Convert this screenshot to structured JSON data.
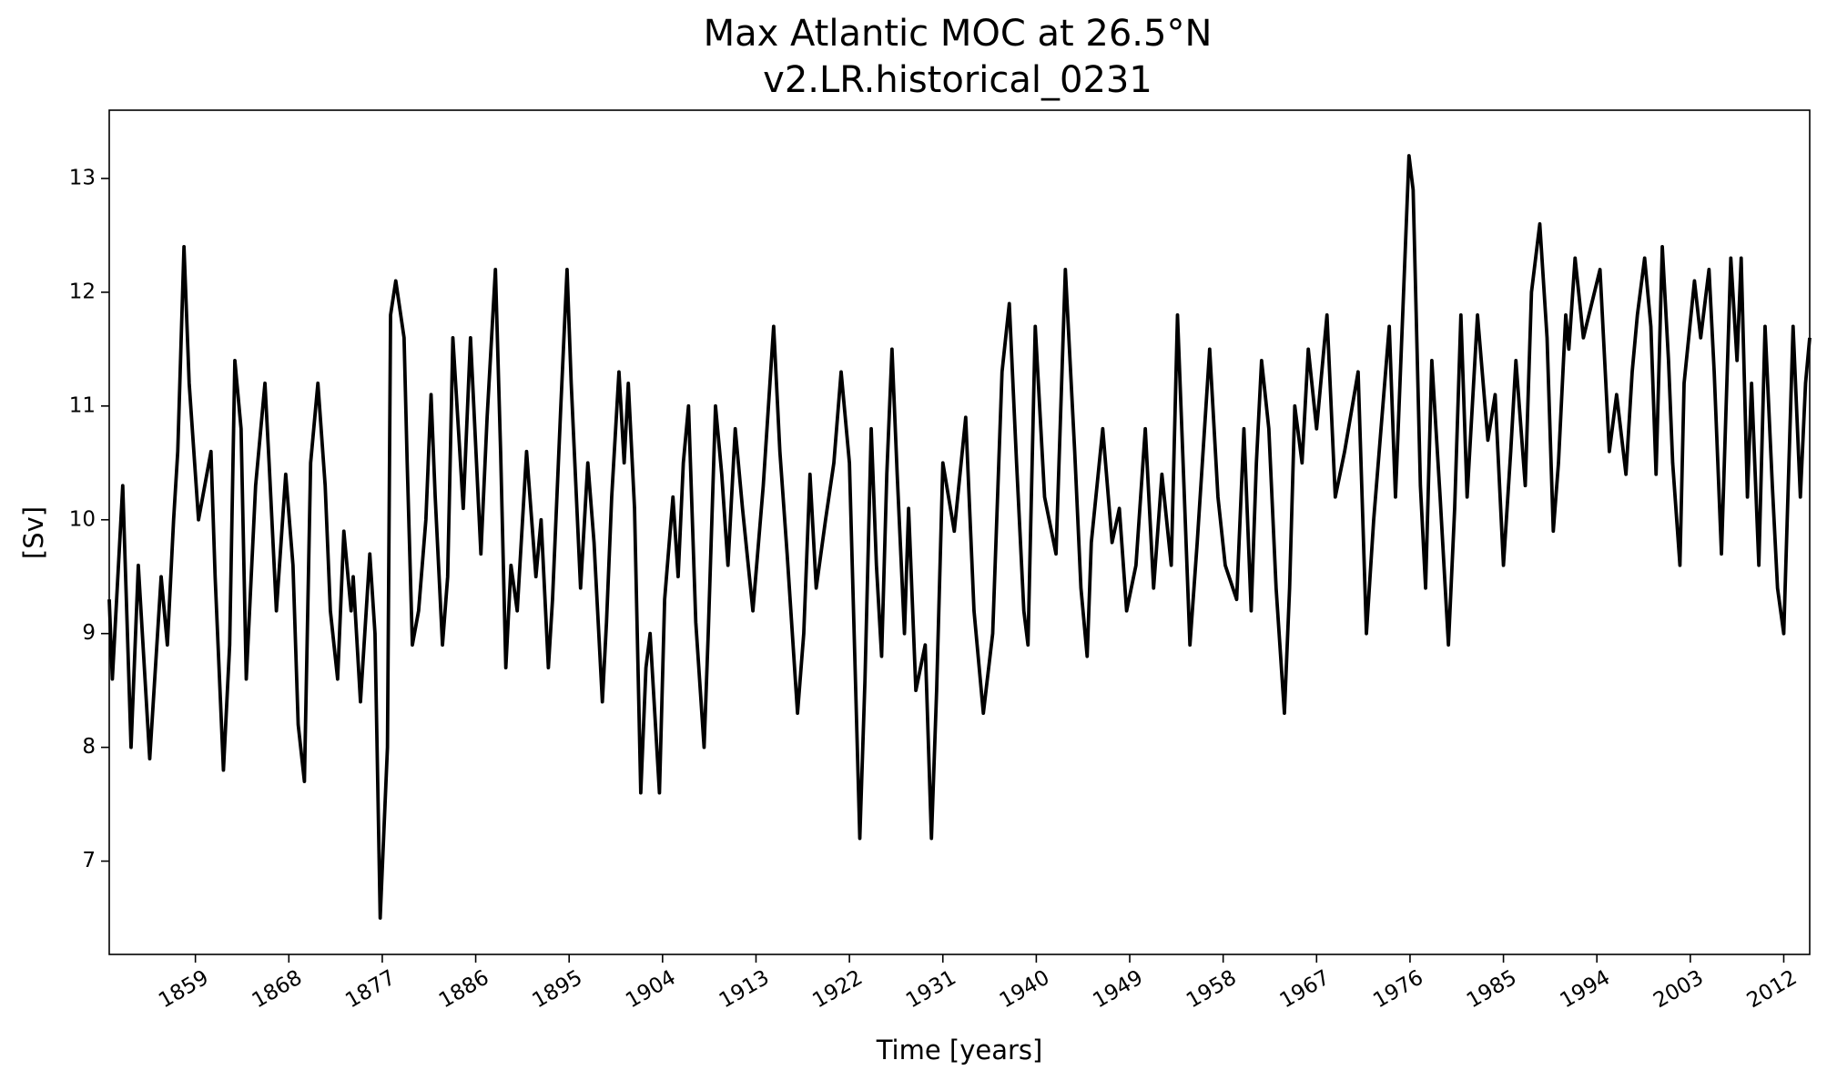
{
  "chart_data": {
    "type": "line",
    "title": "Max Atlantic MOC at 26.5°N",
    "subtitle": "v2.LR.historical_0231",
    "x_label": "Time [years]",
    "y_label": "[Sv]",
    "xlim": [
      1850.7,
      2014.5
    ],
    "ylim": [
      6.18,
      13.6
    ],
    "xticks": [
      1859,
      1868,
      1877,
      1886,
      1895,
      1904,
      1913,
      1922,
      1931,
      1940,
      1949,
      1958,
      1967,
      1976,
      1985,
      1994,
      2003,
      2012
    ],
    "yticks": [
      7,
      8,
      9,
      10,
      11,
      12,
      13
    ],
    "grid": false,
    "x": [
      1850.7,
      1851.0,
      1852.0,
      1852.8,
      1853.5,
      1854.6,
      1855.7,
      1856.3,
      1856.9,
      1857.3,
      1857.9,
      1858.4,
      1859.3,
      1860.5,
      1860.9,
      1861.7,
      1862.3,
      1862.8,
      1863.4,
      1863.9,
      1864.8,
      1865.7,
      1866.1,
      1866.8,
      1867.7,
      1868.4,
      1868.9,
      1869.5,
      1870.1,
      1870.8,
      1871.5,
      1872.0,
      1872.7,
      1873.3,
      1874.0,
      1874.2,
      1874.9,
      1875.8,
      1876.3,
      1876.8,
      1877.5,
      1877.8,
      1878.3,
      1879.1,
      1879.4,
      1879.9,
      1880.5,
      1881.2,
      1881.7,
      1882.1,
      1882.8,
      1883.3,
      1883.8,
      1884.8,
      1885.5,
      1886.5,
      1887.1,
      1887.9,
      1888.4,
      1888.9,
      1889.4,
      1890.0,
      1890.9,
      1891.8,
      1892.3,
      1893.0,
      1893.4,
      1894.2,
      1894.8,
      1895.2,
      1896.1,
      1896.8,
      1897.4,
      1898.2,
      1898.6,
      1899.1,
      1899.8,
      1900.3,
      1900.7,
      1901.3,
      1901.9,
      1902.4,
      1902.8,
      1903.7,
      1904.2,
      1905.0,
      1905.5,
      1906.0,
      1906.5,
      1907.2,
      1908.0,
      1908.4,
      1909.1,
      1909.7,
      1910.3,
      1911.0,
      1911.7,
      1912.7,
      1913.7,
      1914.7,
      1915.3,
      1916.0,
      1917.0,
      1917.6,
      1918.2,
      1918.8,
      1919.7,
      1920.5,
      1921.2,
      1922.0,
      1923.0,
      1923.5,
      1924.1,
      1924.6,
      1925.1,
      1925.6,
      1926.1,
      1926.6,
      1927.3,
      1927.7,
      1928.4,
      1929.3,
      1929.9,
      1930.4,
      1931.0,
      1932.1,
      1933.2,
      1934.0,
      1934.9,
      1935.8,
      1936.7,
      1937.4,
      1938.1,
      1938.8,
      1939.2,
      1939.9,
      1940.8,
      1941.9,
      1942.8,
      1943.7,
      1944.3,
      1944.9,
      1945.3,
      1946.4,
      1947.3,
      1948.0,
      1948.7,
      1949.6,
      1950.5,
      1951.3,
      1952.1,
      1953.0,
      1953.6,
      1954.1,
      1954.8,
      1955.5,
      1956.7,
      1957.5,
      1958.2,
      1959.3,
      1960.0,
      1960.7,
      1961.2,
      1961.7,
      1962.4,
      1963.1,
      1963.9,
      1964.4,
      1964.9,
      1965.6,
      1966.2,
      1967.0,
      1968.0,
      1968.8,
      1969.7,
      1971.0,
      1971.8,
      1972.5,
      1974.0,
      1974.6,
      1975.9,
      1976.3,
      1977.0,
      1977.5,
      1978.1,
      1978.9,
      1979.7,
      1980.3,
      1980.9,
      1981.5,
      1982.5,
      1983.5,
      1984.2,
      1985.0,
      1985.7,
      1986.2,
      1987.1,
      1987.7,
      1988.5,
      1989.2,
      1989.8,
      1990.3,
      1991.0,
      1991.3,
      1991.9,
      1992.7,
      1994.3,
      1995.2,
      1995.9,
      1996.8,
      1997.4,
      1997.9,
      1998.6,
      1999.2,
      1999.7,
      2000.3,
      2000.9,
      2001.3,
      2002.0,
      2002.4,
      2003.4,
      2004.0,
      2004.8,
      2005.3,
      2006.0,
      2006.9,
      2007.5,
      2007.9,
      2008.5,
      2008.9,
      2009.6,
      2010.2,
      2010.9,
      2011.4,
      2012.0,
      2012.9,
      2013.6,
      2014.1,
      2014.5
    ],
    "series": [
      {
        "color": "#000000",
        "values": [
          9.3,
          8.6,
          10.3,
          8.0,
          9.6,
          7.9,
          9.5,
          8.9,
          10.0,
          10.6,
          12.4,
          11.2,
          10.0,
          10.6,
          9.5,
          7.8,
          8.9,
          11.4,
          10.8,
          8.6,
          10.3,
          11.2,
          10.5,
          9.2,
          10.4,
          9.6,
          8.2,
          7.7,
          10.5,
          11.2,
          10.3,
          9.2,
          8.6,
          9.9,
          9.2,
          9.5,
          8.4,
          9.7,
          9.0,
          6.5,
          8.0,
          11.8,
          12.1,
          11.6,
          10.5,
          8.9,
          9.2,
          10.0,
          11.1,
          10.2,
          8.9,
          9.5,
          11.6,
          10.1,
          11.6,
          9.7,
          10.9,
          12.2,
          10.6,
          8.7,
          9.6,
          9.2,
          10.6,
          9.5,
          10.0,
          8.7,
          9.3,
          11.0,
          12.2,
          11.2,
          9.4,
          10.5,
          9.8,
          8.4,
          9.1,
          10.2,
          11.3,
          10.5,
          11.2,
          10.1,
          7.6,
          8.7,
          9.0,
          7.6,
          9.3,
          10.2,
          9.5,
          10.5,
          11.0,
          9.1,
          8.0,
          9.0,
          11.0,
          10.4,
          9.6,
          10.8,
          10.1,
          9.2,
          10.3,
          11.7,
          10.6,
          9.7,
          8.3,
          9.0,
          10.4,
          9.4,
          10.0,
          10.5,
          11.3,
          10.5,
          7.2,
          8.6,
          10.8,
          9.6,
          8.8,
          10.4,
          11.5,
          10.4,
          9.0,
          10.1,
          8.5,
          8.9,
          7.2,
          8.5,
          10.5,
          9.9,
          10.9,
          9.2,
          8.3,
          9.0,
          11.3,
          11.9,
          10.5,
          9.2,
          8.9,
          11.7,
          10.2,
          9.7,
          12.2,
          10.6,
          9.4,
          8.8,
          9.8,
          10.8,
          9.8,
          10.1,
          9.2,
          9.6,
          10.8,
          9.4,
          10.4,
          9.6,
          11.8,
          10.6,
          8.9,
          9.8,
          11.5,
          10.2,
          9.6,
          9.3,
          10.8,
          9.2,
          10.5,
          11.4,
          10.8,
          9.4,
          8.3,
          9.4,
          11.0,
          10.5,
          11.5,
          10.8,
          11.8,
          10.2,
          10.6,
          11.3,
          9.0,
          10.0,
          11.7,
          10.2,
          13.2,
          12.9,
          10.3,
          9.4,
          11.4,
          10.2,
          8.9,
          10.1,
          11.8,
          10.2,
          11.8,
          10.7,
          11.1,
          9.6,
          10.6,
          11.4,
          10.3,
          12.0,
          12.6,
          11.6,
          9.9,
          10.5,
          11.8,
          11.5,
          12.3,
          11.6,
          12.2,
          10.6,
          11.1,
          10.4,
          11.3,
          11.8,
          12.3,
          11.7,
          10.4,
          12.4,
          11.4,
          10.5,
          9.6,
          11.2,
          12.1,
          11.6,
          12.2,
          11.3,
          9.7,
          12.3,
          11.4,
          12.3,
          10.2,
          11.2,
          9.6,
          11.7,
          10.3,
          9.4,
          9.0,
          11.7,
          10.2,
          11.2,
          11.6
        ]
      }
    ]
  }
}
